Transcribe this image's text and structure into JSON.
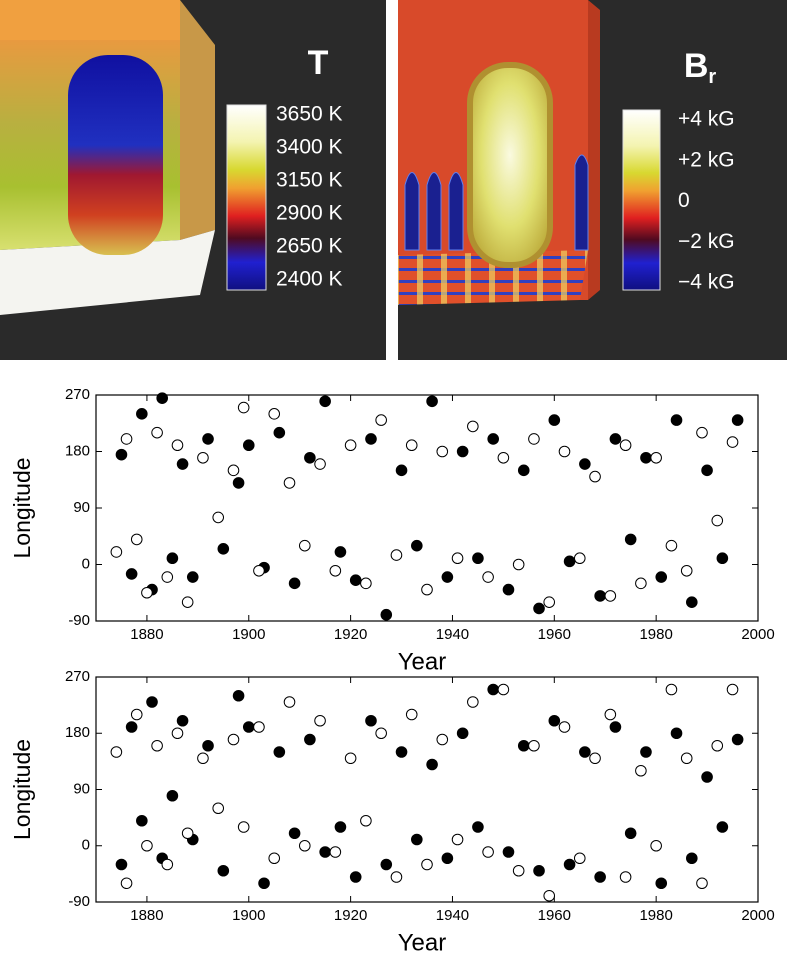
{
  "panels": [
    {
      "title": "T",
      "colorbar_labels": [
        "3650 K",
        "3400 K",
        "3150 K",
        "2900 K",
        "2650 K",
        "2400 K"
      ]
    },
    {
      "title": "B",
      "subscript": "r",
      "colorbar_labels": [
        "+4 kG",
        "+2 kG",
        "0",
        "−2 kG",
        "−4 kG"
      ]
    }
  ],
  "chart_data": [
    {
      "type": "scatter",
      "xlabel": "Year",
      "ylabel": "Longitude",
      "xlim": [
        1870,
        2000
      ],
      "ylim": [
        -90,
        270
      ],
      "xticks": [
        1880,
        1900,
        1920,
        1940,
        1960,
        1980,
        2000
      ],
      "yticks": [
        -90,
        0,
        90,
        180,
        270
      ],
      "series": [
        {
          "color": "#000000",
          "marker": "filled",
          "x": [
            1875,
            1877,
            1879,
            1881,
            1883,
            1885,
            1887,
            1889,
            1892,
            1895,
            1898,
            1900,
            1903,
            1906,
            1909,
            1912,
            1915,
            1918,
            1921,
            1924,
            1927,
            1930,
            1933,
            1936,
            1939,
            1942,
            1945,
            1948,
            1951,
            1954,
            1957,
            1960,
            1963,
            1966,
            1969,
            1972,
            1975,
            1978,
            1981,
            1984,
            1987,
            1990,
            1993,
            1996
          ],
          "values": [
            175,
            -15,
            240,
            -40,
            265,
            10,
            160,
            -20,
            200,
            25,
            130,
            190,
            -5,
            210,
            -30,
            170,
            260,
            20,
            -25,
            200,
            -80,
            150,
            30,
            260,
            -20,
            180,
            10,
            200,
            -40,
            150,
            -70,
            230,
            5,
            160,
            -50,
            200,
            40,
            170,
            -20,
            230,
            -60,
            150,
            10,
            230
          ]
        },
        {
          "color": "#ffffff",
          "marker": "open",
          "x": [
            1874,
            1876,
            1878,
            1880,
            1882,
            1884,
            1886,
            1888,
            1891,
            1894,
            1897,
            1899,
            1902,
            1905,
            1908,
            1911,
            1914,
            1917,
            1920,
            1923,
            1926,
            1929,
            1932,
            1935,
            1938,
            1941,
            1944,
            1947,
            1950,
            1953,
            1956,
            1959,
            1962,
            1965,
            1968,
            1971,
            1974,
            1977,
            1980,
            1983,
            1986,
            1989,
            1992,
            1995
          ],
          "values": [
            20,
            200,
            40,
            -45,
            210,
            -20,
            190,
            -60,
            170,
            75,
            150,
            250,
            -10,
            240,
            130,
            30,
            160,
            -10,
            190,
            -30,
            230,
            15,
            190,
            -40,
            180,
            10,
            220,
            -20,
            170,
            0,
            200,
            -60,
            180,
            10,
            140,
            -50,
            190,
            -30,
            170,
            30,
            -10,
            210,
            70,
            195
          ]
        }
      ]
    },
    {
      "type": "scatter",
      "xlabel": "Year",
      "ylabel": "Longitude",
      "xlim": [
        1870,
        2000
      ],
      "ylim": [
        -90,
        270
      ],
      "xticks": [
        1880,
        1900,
        1920,
        1940,
        1960,
        1980,
        2000
      ],
      "yticks": [
        -90,
        0,
        90,
        180,
        270
      ],
      "series": [
        {
          "color": "#000000",
          "marker": "filled",
          "x": [
            1875,
            1877,
            1879,
            1881,
            1883,
            1885,
            1887,
            1889,
            1892,
            1895,
            1898,
            1900,
            1903,
            1906,
            1909,
            1912,
            1915,
            1918,
            1921,
            1924,
            1927,
            1930,
            1933,
            1936,
            1939,
            1942,
            1945,
            1948,
            1951,
            1954,
            1957,
            1960,
            1963,
            1966,
            1969,
            1972,
            1975,
            1978,
            1981,
            1984,
            1987,
            1990,
            1993,
            1996
          ],
          "values": [
            -30,
            190,
            40,
            230,
            -20,
            80,
            200,
            10,
            160,
            -40,
            240,
            190,
            -60,
            150,
            20,
            170,
            -10,
            30,
            -50,
            200,
            -30,
            150,
            10,
            130,
            -20,
            180,
            30,
            250,
            -10,
            160,
            -40,
            200,
            -30,
            150,
            -50,
            190,
            20,
            150,
            -60,
            180,
            -20,
            110,
            30,
            170
          ]
        },
        {
          "color": "#ffffff",
          "marker": "open",
          "x": [
            1874,
            1876,
            1878,
            1880,
            1882,
            1884,
            1886,
            1888,
            1891,
            1894,
            1897,
            1899,
            1902,
            1905,
            1908,
            1911,
            1914,
            1917,
            1920,
            1923,
            1926,
            1929,
            1932,
            1935,
            1938,
            1941,
            1944,
            1947,
            1950,
            1953,
            1956,
            1959,
            1962,
            1965,
            1968,
            1971,
            1974,
            1977,
            1980,
            1983,
            1986,
            1989,
            1992,
            1995
          ],
          "values": [
            150,
            -60,
            210,
            0,
            160,
            -30,
            180,
            20,
            140,
            60,
            170,
            30,
            190,
            -20,
            230,
            0,
            200,
            -10,
            140,
            40,
            180,
            -50,
            210,
            -30,
            170,
            10,
            230,
            -10,
            250,
            -40,
            160,
            -80,
            190,
            -20,
            140,
            210,
            -50,
            120,
            0,
            250,
            140,
            -60,
            160,
            250
          ]
        }
      ]
    }
  ]
}
